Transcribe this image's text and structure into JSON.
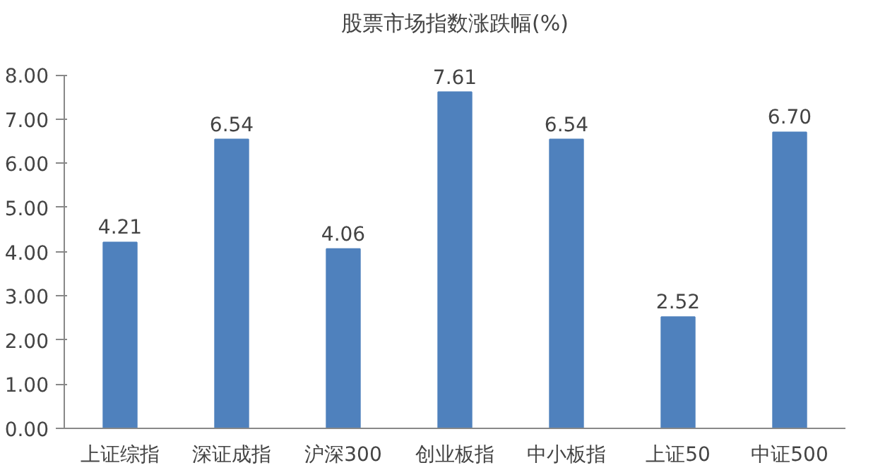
{
  "chart_data": {
    "type": "bar",
    "title": "股票市场指数涨跌幅(%)",
    "categories": [
      "上证综指",
      "深证成指",
      "沪深300",
      "创业板指",
      "中小板指",
      "上证50",
      "中证500"
    ],
    "values": [
      4.21,
      6.54,
      4.06,
      7.61,
      6.54,
      2.52,
      6.7
    ],
    "value_labels": [
      "4.21",
      "6.54",
      "4.06",
      "7.61",
      "6.54",
      "2.52",
      "6.70"
    ],
    "color": "#4f81bd",
    "ylim": [
      0,
      8
    ],
    "yticks": [
      {
        "value": 0,
        "label": "0.00"
      },
      {
        "value": 1,
        "label": "1.00"
      },
      {
        "value": 2,
        "label": "2.00"
      },
      {
        "value": 3,
        "label": "3.00"
      },
      {
        "value": 4,
        "label": "4.00"
      },
      {
        "value": 5,
        "label": "5.00"
      },
      {
        "value": 6,
        "label": "6.00"
      },
      {
        "value": 7,
        "label": "7.00"
      },
      {
        "value": 8,
        "label": "8.00"
      }
    ],
    "grid": false
  }
}
